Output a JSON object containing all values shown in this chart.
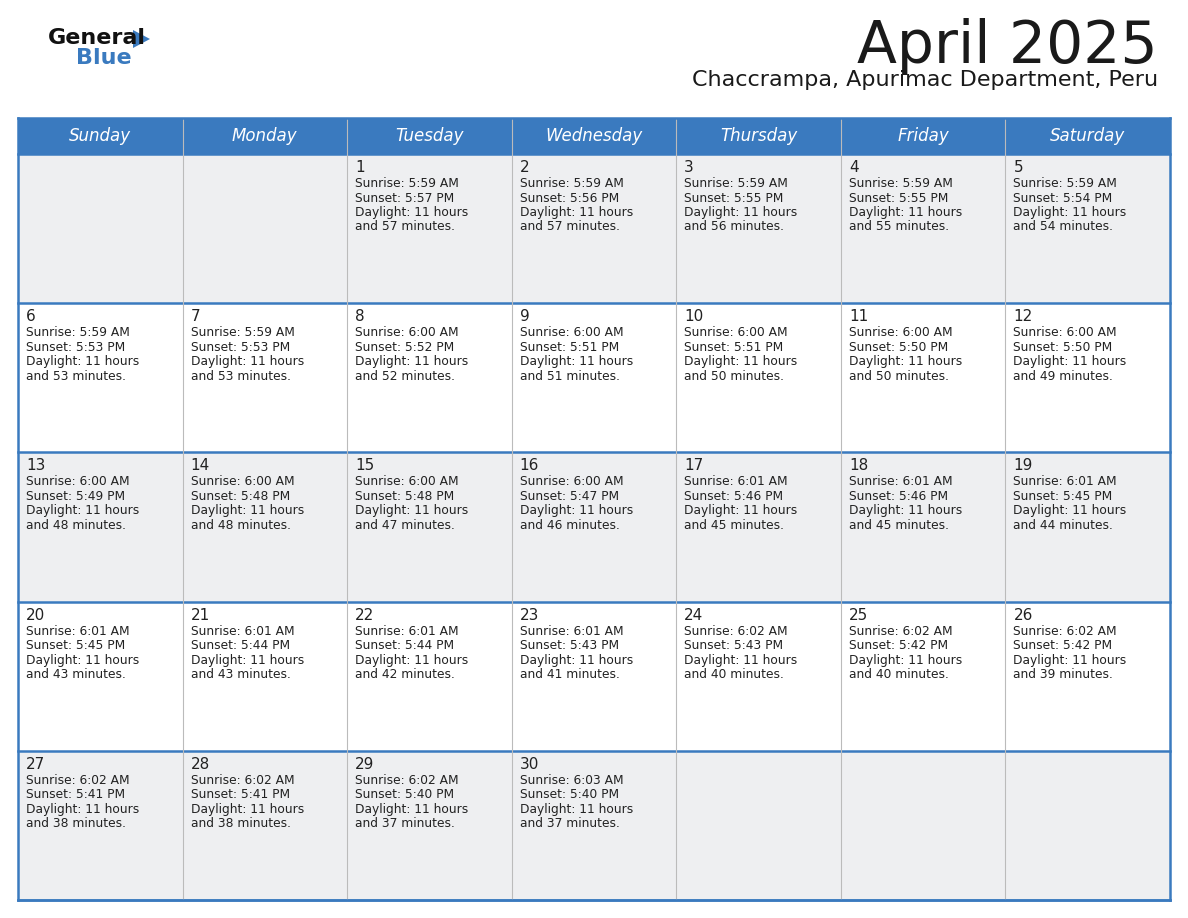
{
  "title": "April 2025",
  "subtitle": "Chaccrampa, Apurimac Department, Peru",
  "days_of_week": [
    "Sunday",
    "Monday",
    "Tuesday",
    "Wednesday",
    "Thursday",
    "Friday",
    "Saturday"
  ],
  "header_bg": "#3a7abf",
  "header_text": "#ffffff",
  "row_bg_light": "#eeeff1",
  "row_bg_white": "#ffffff",
  "divider_color": "#3a7abf",
  "cell_text_color": "#222222",
  "calendar_data": [
    [
      {
        "day": "",
        "sunrise": "",
        "sunset": "",
        "daylight_h": "",
        "daylight_m": ""
      },
      {
        "day": "",
        "sunrise": "",
        "sunset": "",
        "daylight_h": "",
        "daylight_m": ""
      },
      {
        "day": "1",
        "sunrise": "5:59 AM",
        "sunset": "5:57 PM",
        "daylight_h": "11 hours",
        "daylight_m": "57 minutes."
      },
      {
        "day": "2",
        "sunrise": "5:59 AM",
        "sunset": "5:56 PM",
        "daylight_h": "11 hours",
        "daylight_m": "57 minutes."
      },
      {
        "day": "3",
        "sunrise": "5:59 AM",
        "sunset": "5:55 PM",
        "daylight_h": "11 hours",
        "daylight_m": "56 minutes."
      },
      {
        "day": "4",
        "sunrise": "5:59 AM",
        "sunset": "5:55 PM",
        "daylight_h": "11 hours",
        "daylight_m": "55 minutes."
      },
      {
        "day": "5",
        "sunrise": "5:59 AM",
        "sunset": "5:54 PM",
        "daylight_h": "11 hours",
        "daylight_m": "54 minutes."
      }
    ],
    [
      {
        "day": "6",
        "sunrise": "5:59 AM",
        "sunset": "5:53 PM",
        "daylight_h": "11 hours",
        "daylight_m": "53 minutes."
      },
      {
        "day": "7",
        "sunrise": "5:59 AM",
        "sunset": "5:53 PM",
        "daylight_h": "11 hours",
        "daylight_m": "53 minutes."
      },
      {
        "day": "8",
        "sunrise": "6:00 AM",
        "sunset": "5:52 PM",
        "daylight_h": "11 hours",
        "daylight_m": "52 minutes."
      },
      {
        "day": "9",
        "sunrise": "6:00 AM",
        "sunset": "5:51 PM",
        "daylight_h": "11 hours",
        "daylight_m": "51 minutes."
      },
      {
        "day": "10",
        "sunrise": "6:00 AM",
        "sunset": "5:51 PM",
        "daylight_h": "11 hours",
        "daylight_m": "50 minutes."
      },
      {
        "day": "11",
        "sunrise": "6:00 AM",
        "sunset": "5:50 PM",
        "daylight_h": "11 hours",
        "daylight_m": "50 minutes."
      },
      {
        "day": "12",
        "sunrise": "6:00 AM",
        "sunset": "5:50 PM",
        "daylight_h": "11 hours",
        "daylight_m": "49 minutes."
      }
    ],
    [
      {
        "day": "13",
        "sunrise": "6:00 AM",
        "sunset": "5:49 PM",
        "daylight_h": "11 hours",
        "daylight_m": "48 minutes."
      },
      {
        "day": "14",
        "sunrise": "6:00 AM",
        "sunset": "5:48 PM",
        "daylight_h": "11 hours",
        "daylight_m": "48 minutes."
      },
      {
        "day": "15",
        "sunrise": "6:00 AM",
        "sunset": "5:48 PM",
        "daylight_h": "11 hours",
        "daylight_m": "47 minutes."
      },
      {
        "day": "16",
        "sunrise": "6:00 AM",
        "sunset": "5:47 PM",
        "daylight_h": "11 hours",
        "daylight_m": "46 minutes."
      },
      {
        "day": "17",
        "sunrise": "6:01 AM",
        "sunset": "5:46 PM",
        "daylight_h": "11 hours",
        "daylight_m": "45 minutes."
      },
      {
        "day": "18",
        "sunrise": "6:01 AM",
        "sunset": "5:46 PM",
        "daylight_h": "11 hours",
        "daylight_m": "45 minutes."
      },
      {
        "day": "19",
        "sunrise": "6:01 AM",
        "sunset": "5:45 PM",
        "daylight_h": "11 hours",
        "daylight_m": "44 minutes."
      }
    ],
    [
      {
        "day": "20",
        "sunrise": "6:01 AM",
        "sunset": "5:45 PM",
        "daylight_h": "11 hours",
        "daylight_m": "43 minutes."
      },
      {
        "day": "21",
        "sunrise": "6:01 AM",
        "sunset": "5:44 PM",
        "daylight_h": "11 hours",
        "daylight_m": "43 minutes."
      },
      {
        "day": "22",
        "sunrise": "6:01 AM",
        "sunset": "5:44 PM",
        "daylight_h": "11 hours",
        "daylight_m": "42 minutes."
      },
      {
        "day": "23",
        "sunrise": "6:01 AM",
        "sunset": "5:43 PM",
        "daylight_h": "11 hours",
        "daylight_m": "41 minutes."
      },
      {
        "day": "24",
        "sunrise": "6:02 AM",
        "sunset": "5:43 PM",
        "daylight_h": "11 hours",
        "daylight_m": "40 minutes."
      },
      {
        "day": "25",
        "sunrise": "6:02 AM",
        "sunset": "5:42 PM",
        "daylight_h": "11 hours",
        "daylight_m": "40 minutes."
      },
      {
        "day": "26",
        "sunrise": "6:02 AM",
        "sunset": "5:42 PM",
        "daylight_h": "11 hours",
        "daylight_m": "39 minutes."
      }
    ],
    [
      {
        "day": "27",
        "sunrise": "6:02 AM",
        "sunset": "5:41 PM",
        "daylight_h": "11 hours",
        "daylight_m": "38 minutes."
      },
      {
        "day": "28",
        "sunrise": "6:02 AM",
        "sunset": "5:41 PM",
        "daylight_h": "11 hours",
        "daylight_m": "38 minutes."
      },
      {
        "day": "29",
        "sunrise": "6:02 AM",
        "sunset": "5:40 PM",
        "daylight_h": "11 hours",
        "daylight_m": "37 minutes."
      },
      {
        "day": "30",
        "sunrise": "6:03 AM",
        "sunset": "5:40 PM",
        "daylight_h": "11 hours",
        "daylight_m": "37 minutes."
      },
      {
        "day": "",
        "sunrise": "",
        "sunset": "",
        "daylight_h": "",
        "daylight_m": ""
      },
      {
        "day": "",
        "sunrise": "",
        "sunset": "",
        "daylight_h": "",
        "daylight_m": ""
      },
      {
        "day": "",
        "sunrise": "",
        "sunset": "",
        "daylight_h": "",
        "daylight_m": ""
      }
    ]
  ]
}
